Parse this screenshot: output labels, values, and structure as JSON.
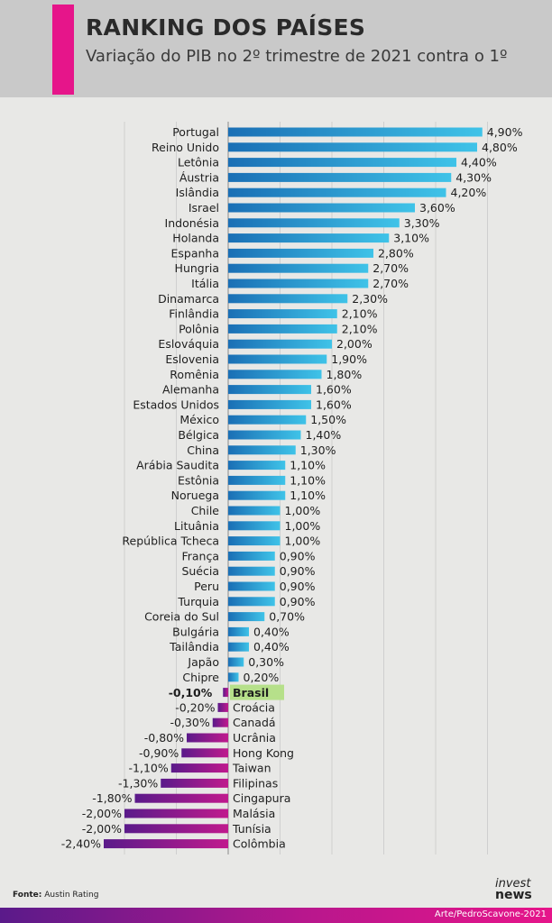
{
  "header": {
    "title": "RANKING DOS PAÍSES",
    "subtitle": "Variação do PIB no 2º trimestre de 2021 contra o 1º"
  },
  "colors": {
    "accent": "#e6158a",
    "positive_bar_dark": "#1a6fb5",
    "positive_bar_light": "#3fc3e8",
    "negative_bar_dark": "#5a1a8a",
    "negative_bar_light": "#c01a8d",
    "highlight": "#b6e08a"
  },
  "chart_data": {
    "type": "bar",
    "orientation": "horizontal",
    "title": "RANKING DOS PAÍSES",
    "subtitle": "Variação do PIB no 2º trimestre de 2021 contra o 1º",
    "xlim": [
      -2.5,
      5.0
    ],
    "grid": true,
    "highlight": "Brasil",
    "categories": [
      "Portugal",
      "Reino Unido",
      "Letônia",
      "Áustria",
      "Islândia",
      "Israel",
      "Indonésia",
      "Holanda",
      "Espanha",
      "Hungria",
      "Itália",
      "Dinamarca",
      "Finlândia",
      "Polônia",
      "Eslováquia",
      "Eslovenia",
      "Romênia",
      "Alemanha",
      "Estados Unidos",
      "México",
      "Bélgica",
      "China",
      "Arábia Saudita",
      "Estônia",
      "Noruega",
      "Chile",
      "Lituânia",
      "República Tcheca",
      "França",
      "Suécia",
      "Peru",
      "Turquia",
      "Coreia do Sul",
      "Bulgária",
      "Tailândia",
      "Japão",
      "Chipre",
      "Brasil",
      "Croácia",
      "Canadá",
      "Ucrânia",
      "Hong Kong",
      "Taiwan",
      "Filipinas",
      "Cingapura",
      "Malásia",
      "Tunísia",
      "Colômbia"
    ],
    "values": [
      4.9,
      4.8,
      4.4,
      4.3,
      4.2,
      3.6,
      3.3,
      3.1,
      2.8,
      2.7,
      2.7,
      2.3,
      2.1,
      2.1,
      2.0,
      1.9,
      1.8,
      1.6,
      1.6,
      1.5,
      1.4,
      1.3,
      1.1,
      1.1,
      1.1,
      1.0,
      1.0,
      1.0,
      0.9,
      0.9,
      0.9,
      0.9,
      0.7,
      0.4,
      0.4,
      0.3,
      0.2,
      -0.1,
      -0.2,
      -0.3,
      -0.8,
      -0.9,
      -1.1,
      -1.3,
      -1.8,
      -2.0,
      -2.0,
      -2.4
    ],
    "value_labels": [
      "4,90%",
      "4,80%",
      "4,40%",
      "4,30%",
      "4,20%",
      "3,60%",
      "3,30%",
      "3,10%",
      "2,80%",
      "2,70%",
      "2,70%",
      "2,30%",
      "2,10%",
      "2,10%",
      "2,00%",
      "1,90%",
      "1,80%",
      "1,60%",
      "1,60%",
      "1,50%",
      "1,40%",
      "1,30%",
      "1,10%",
      "1,10%",
      "1,10%",
      "1,00%",
      "1,00%",
      "1,00%",
      "0,90%",
      "0,90%",
      "0,90%",
      "0,90%",
      "0,70%",
      "0,40%",
      "0,40%",
      "0,30%",
      "0,20%",
      "-0,10%",
      "-0,20%",
      "-0,30%",
      "-0,80%",
      "-0,90%",
      "-1,10%",
      "-1,30%",
      "-1,80%",
      "-2,00%",
      "-2,00%",
      "-2,40%"
    ]
  },
  "footer": {
    "source_label": "Fonte:",
    "source_value": "Austin Rating",
    "logo_line1": "invest",
    "logo_line2": "news",
    "credit": "Arte/PedroScavone-2021"
  }
}
